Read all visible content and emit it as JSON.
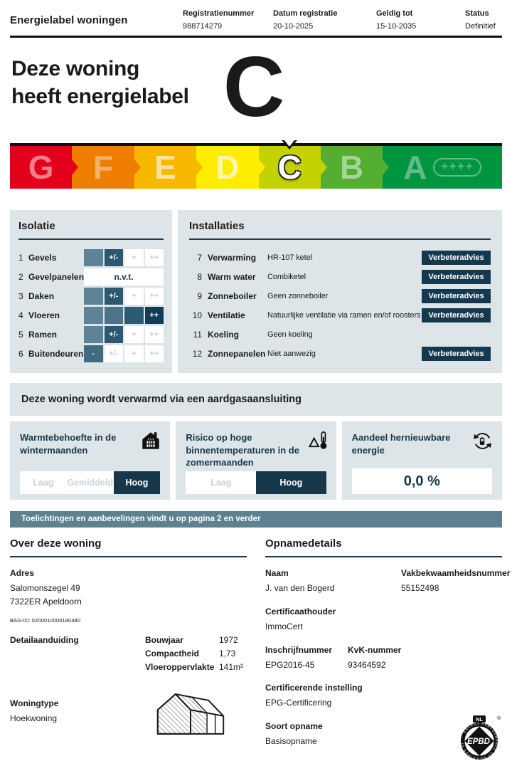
{
  "header": {
    "title": "Energielabel woningen",
    "fields": [
      {
        "label": "Registratienummer",
        "value": "988714279"
      },
      {
        "label": "Datum registratie",
        "value": "20-10-2025"
      },
      {
        "label": "Geldig tot",
        "value": "15-10-2035"
      },
      {
        "label": "Status",
        "value": "Definitief"
      }
    ]
  },
  "hero": {
    "line1": "Deze woning",
    "line2": "heeft energielabel",
    "grade": "C"
  },
  "scale": {
    "current": "C",
    "segments": [
      {
        "letter": "G",
        "color": "#e2001a",
        "letter_color": "#ee7f8a"
      },
      {
        "letter": "F",
        "color": "#ee7d00",
        "letter_color": "#f5b269"
      },
      {
        "letter": "E",
        "color": "#f9b800",
        "letter_color": "#fbe3a3"
      },
      {
        "letter": "D",
        "color": "#ffed00",
        "letter_color": "#fdf6b0"
      },
      {
        "letter": "C",
        "color": "#c3d200",
        "letter_color": "#ffffff"
      },
      {
        "letter": "B",
        "color": "#53ae32",
        "letter_color": "#a6d396"
      },
      {
        "letter": "A",
        "color": "#009640",
        "letter_color": "#63b98b",
        "suffix": "++++",
        "wide": true
      }
    ]
  },
  "isolatie": {
    "title": "Isolatie",
    "levels": [
      "-",
      "+/-",
      "+",
      "++"
    ],
    "cell_filled_colors": [
      "#5e8296",
      "#4c7389",
      "#2b5a72",
      "#16425a"
    ],
    "cell_selected_colors": [
      "#3f6b80",
      "#2c5970",
      "#1c4b63",
      "#113c53"
    ],
    "cell_empty_text_color": "#c3ced6",
    "rows": [
      {
        "num": "1",
        "label": "Gevels",
        "rating": "+/-"
      },
      {
        "num": "2",
        "label": "Gevelpanelen",
        "rating": "n.v.t."
      },
      {
        "num": "3",
        "label": "Daken",
        "rating": "+/-"
      },
      {
        "num": "4",
        "label": "Vloeren",
        "rating": "++"
      },
      {
        "num": "5",
        "label": "Ramen",
        "rating": "+/-"
      },
      {
        "num": "6",
        "label": "Buitendeuren",
        "rating": "-"
      }
    ]
  },
  "installaties": {
    "title": "Installaties",
    "button_label": "Verbeteradvies",
    "rows": [
      {
        "num": "7",
        "label": "Verwarming",
        "value": "HR-107 ketel",
        "button": true
      },
      {
        "num": "8",
        "label": "Warm water",
        "value": "Combiketel",
        "button": true
      },
      {
        "num": "9",
        "label": "Zonneboiler",
        "value": "Geen zonneboiler",
        "button": true
      },
      {
        "num": "10",
        "label": "Ventilatie",
        "value": "Natuurlijke ventilatie via ramen en/of roosters",
        "button": true
      },
      {
        "num": "11",
        "label": "Koeling",
        "value": "Geen koeling",
        "button": false
      },
      {
        "num": "12",
        "label": "Zonnepanelen",
        "value": "Niet aanwezig",
        "button": true
      }
    ]
  },
  "gas_banner": "Deze woning wordt verwarmd via een aardgasaansluiting",
  "cards": [
    {
      "title": "Warmtebehoefte in de wintermaanden",
      "icon": "house-heating-icon",
      "options": [
        "Laag",
        "Gemiddeld",
        "Hoog"
      ],
      "selected": "Hoog"
    },
    {
      "title": "Risico op hoge binnentemperaturen in de zomermaanden",
      "icon": "thermometer-warning-icon",
      "options": [
        "Laag",
        "Hoog"
      ],
      "selected": "Hoog"
    },
    {
      "title": "Aandeel hernieuwbare energie",
      "icon": "renewable-energy-icon",
      "value": "0,0 %"
    }
  ],
  "note_banner": "Toelichtingen en aanbevelingen vindt u op pagina 2 en verder",
  "woning": {
    "title": "Over deze woning",
    "adres_label": "Adres",
    "adres_line1": "Salomonszegel 49",
    "adres_line2": "7322ER Apeldoorn",
    "bag_id": "BAG-ID: 0200010000180480",
    "detail_label": "Detailaanduiding",
    "facts": [
      {
        "label": "Bouwjaar",
        "value": "1972"
      },
      {
        "label": "Compactheid",
        "value": "1,73"
      },
      {
        "label": "Vloeroppervlakte",
        "value": "141m²"
      }
    ],
    "woningtype_label": "Woningtype",
    "woningtype_value": "Hoekwoning"
  },
  "opname": {
    "title": "Opnamedetails",
    "naam_label": "Naam",
    "naam_value": "J. van den Bogerd",
    "vak_label": "Vakbekwaamheidsnummer",
    "vak_value": "55152498",
    "cert_label": "Certificaathouder",
    "cert_value": "ImmoCert",
    "inschrijf_label": "Inschrijfnummer",
    "inschrijf_value": "EPG2016-45",
    "kvk_label": "KvK-nummer",
    "kvk_value": "93464592",
    "instelling_label": "Certificerende instelling",
    "instelling_value": "EPG-Certificering",
    "soort_label": "Soort opname",
    "soort_value": "Basisopname"
  },
  "logo": {
    "country": "NL",
    "name": "EPBD",
    "reg": "®",
    "ring_text": "ENERGY PERFORMANCE OF BUILDINGS DIRECTIVE"
  },
  "colors": {
    "accent_navy": "#16374a",
    "panel_bg": "#dee5e9",
    "banner_slate": "#5d8191"
  }
}
